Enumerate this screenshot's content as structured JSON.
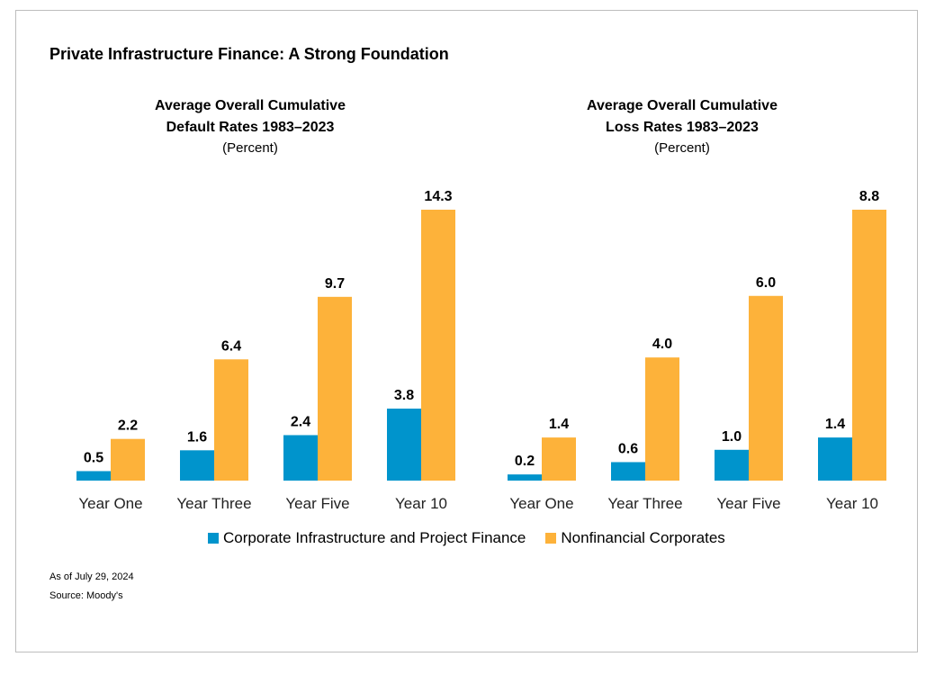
{
  "title": "Private Infrastructure Finance: A Strong Foundation",
  "colors": {
    "corporate_infra": "#0094cc",
    "nonfinancial": "#fdb23a"
  },
  "legend": [
    "Corporate Infrastructure and Project Finance",
    "Nonfinancial Corporates"
  ],
  "notes": {
    "date": "As of July 29, 2024",
    "source": "Source: Moody's"
  },
  "chart_data": [
    {
      "type": "bar",
      "title_line1": "Average Overall Cumulative",
      "title_line2": "Default Rates 1983–2023",
      "subtitle": "(Percent)",
      "categories": [
        "Year One",
        "Year Three",
        "Year Five",
        "Year 10"
      ],
      "series": [
        {
          "name": "Corporate Infrastructure and Project Finance",
          "values": [
            0.5,
            1.6,
            2.4,
            3.8
          ]
        },
        {
          "name": "Nonfinancial Corporates",
          "values": [
            2.2,
            6.4,
            9.7,
            14.3
          ]
        }
      ],
      "value_labels": [
        [
          "0.5",
          "1.6",
          "2.4",
          "3.8"
        ],
        [
          "2.2",
          "6.4",
          "9.7",
          "14.3"
        ]
      ],
      "ylim": [
        0,
        14.3
      ]
    },
    {
      "type": "bar",
      "title_line1": "Average Overall Cumulative",
      "title_line2": "Loss Rates 1983–2023",
      "subtitle": "(Percent)",
      "categories": [
        "Year One",
        "Year Three",
        "Year Five",
        "Year 10"
      ],
      "series": [
        {
          "name": "Corporate Infrastructure and Project Finance",
          "values": [
            0.2,
            0.6,
            1.0,
            1.4
          ]
        },
        {
          "name": "Nonfinancial Corporates",
          "values": [
            1.4,
            4.0,
            6.0,
            8.8
          ]
        }
      ],
      "value_labels": [
        [
          "0.2",
          "0.6",
          "1.0",
          "1.4"
        ],
        [
          "1.4",
          "4.0",
          "6.0",
          "8.8"
        ]
      ],
      "ylim": [
        0,
        8.8
      ]
    }
  ]
}
